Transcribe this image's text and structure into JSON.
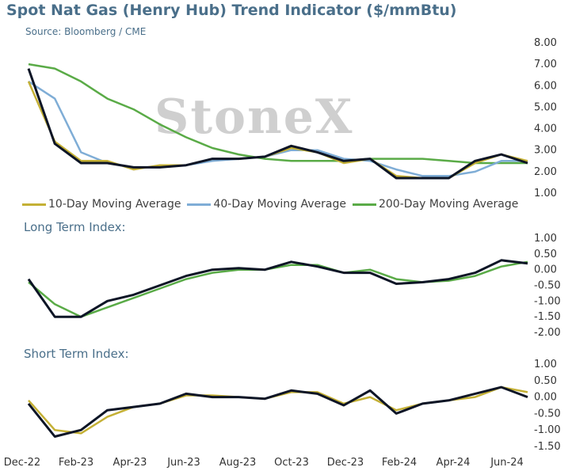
{
  "header": {
    "title": "Spot Nat Gas (Henry Hub) Trend Indicator ($/mmBtu)",
    "source": "Source: Bloomberg / CME",
    "watermark": "StoneX"
  },
  "panels": {
    "long_term_label": "Long Term Index:",
    "short_term_label": "Short Term Index:"
  },
  "colors": {
    "price": "#0d1526",
    "ma10": "#c4b035",
    "ma40": "#7fadd6",
    "ma200": "#5aab47",
    "title": "#4a6f8a"
  },
  "chart_data": [
    {
      "type": "line",
      "title": "Spot Nat Gas (Henry Hub) Trend Indicator ($/mmBtu)",
      "x_ticks": [
        "Dec-22",
        "Feb-23",
        "Apr-23",
        "Jun-23",
        "Aug-23",
        "Oct-23",
        "Dec-23",
        "Feb-24",
        "Apr-24",
        "Jun-24"
      ],
      "x": [
        "Dec-22",
        "Jan-23",
        "Feb-23",
        "Mar-23",
        "Apr-23",
        "May-23",
        "Jun-23",
        "Jul-23",
        "Aug-23",
        "Sep-23",
        "Oct-23",
        "Nov-23",
        "Dec-23",
        "Jan-24",
        "Feb-24",
        "Mar-24",
        "Apr-24",
        "May-24",
        "Jun-24",
        "Jul-24"
      ],
      "ylim": [
        1.0,
        8.0
      ],
      "y_ticks": [
        "1.00",
        "2.00",
        "3.00",
        "4.00",
        "5.00",
        "6.00",
        "7.00",
        "8.00"
      ],
      "legend_position": "bottom",
      "series": [
        {
          "name": "",
          "values": [
            6.8,
            3.3,
            2.4,
            2.4,
            2.2,
            2.2,
            2.3,
            2.6,
            2.6,
            2.7,
            3.2,
            2.9,
            2.5,
            2.6,
            1.7,
            1.7,
            1.7,
            2.5,
            2.8,
            2.4
          ]
        },
        {
          "name": "10-Day Moving Average",
          "values": [
            6.2,
            3.4,
            2.5,
            2.5,
            2.1,
            2.3,
            2.3,
            2.6,
            2.6,
            2.7,
            3.1,
            2.9,
            2.4,
            2.6,
            1.8,
            1.7,
            1.7,
            2.4,
            2.8,
            2.5
          ]
        },
        {
          "name": "40-Day Moving Average",
          "values": [
            6.2,
            5.4,
            2.9,
            2.4,
            2.2,
            2.2,
            2.3,
            2.5,
            2.6,
            2.7,
            3.0,
            3.0,
            2.6,
            2.5,
            2.1,
            1.8,
            1.8,
            2.0,
            2.5,
            2.5
          ]
        },
        {
          "name": "200-Day Moving Average",
          "values": [
            7.0,
            6.8,
            6.2,
            5.4,
            4.9,
            4.2,
            3.6,
            3.1,
            2.8,
            2.6,
            2.5,
            2.5,
            2.5,
            2.6,
            2.6,
            2.6,
            2.5,
            2.4,
            2.4,
            2.4
          ]
        }
      ]
    },
    {
      "type": "line",
      "title": "Long Term Index:",
      "ylim": [
        -2.0,
        1.0
      ],
      "y_ticks": [
        "1.00",
        "0.50",
        "0.00",
        "-0.50",
        "-1.00",
        "-1.50",
        "-2.00"
      ],
      "series": [
        {
          "name": "",
          "values": [
            -0.3,
            -1.5,
            -1.5,
            -1.0,
            -0.8,
            -0.5,
            -0.2,
            0.0,
            0.05,
            0.0,
            0.25,
            0.1,
            -0.1,
            -0.1,
            -0.45,
            -0.4,
            -0.3,
            -0.1,
            0.3,
            0.2
          ]
        },
        {
          "name": "",
          "values": [
            -0.4,
            -1.1,
            -1.5,
            -1.2,
            -0.9,
            -0.6,
            -0.3,
            -0.1,
            0.0,
            0.0,
            0.15,
            0.15,
            -0.1,
            0.0,
            -0.3,
            -0.4,
            -0.35,
            -0.2,
            0.1,
            0.25
          ]
        }
      ]
    },
    {
      "type": "line",
      "title": "Short Term Index:",
      "ylim": [
        -1.5,
        1.0
      ],
      "y_ticks": [
        "1.00",
        "0.50",
        "0.00",
        "-0.50",
        "-1.00",
        "-1.50"
      ],
      "series": [
        {
          "name": "",
          "values": [
            -0.2,
            -1.2,
            -1.0,
            -0.4,
            -0.3,
            -0.2,
            0.1,
            0.0,
            0.0,
            -0.05,
            0.2,
            0.1,
            -0.25,
            0.2,
            -0.5,
            -0.2,
            -0.1,
            0.1,
            0.3,
            0.0
          ]
        },
        {
          "name": "",
          "values": [
            -0.1,
            -1.0,
            -1.1,
            -0.6,
            -0.3,
            -0.2,
            0.05,
            0.05,
            0.0,
            -0.05,
            0.15,
            0.15,
            -0.2,
            0.0,
            -0.4,
            -0.2,
            -0.1,
            0.0,
            0.3,
            0.15
          ]
        }
      ]
    }
  ]
}
